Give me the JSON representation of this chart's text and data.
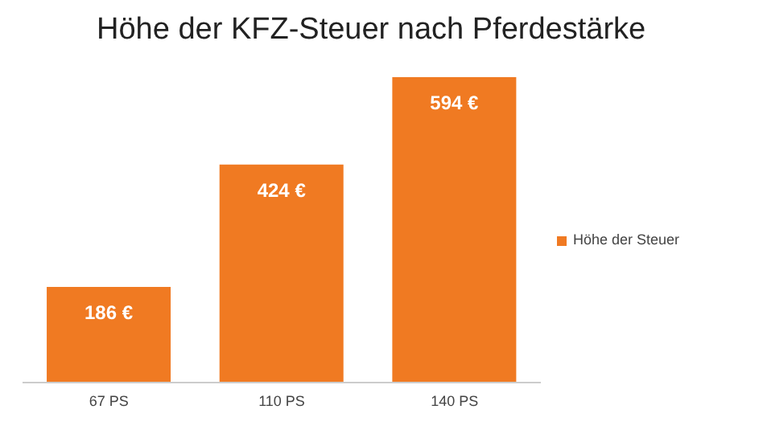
{
  "chart_data": {
    "type": "bar",
    "title": "Höhe der KFZ-Steuer nach Pferdestärke",
    "categories": [
      "67 PS",
      "110 PS",
      "140 PS"
    ],
    "series": [
      {
        "name": "Höhe der Steuer",
        "color": "#f07a22",
        "values": [
          186,
          424,
          594
        ]
      }
    ],
    "value_labels": [
      "186 €",
      "424 €",
      "594 €"
    ],
    "data_labels": true,
    "legend": "right",
    "grid": false
  }
}
